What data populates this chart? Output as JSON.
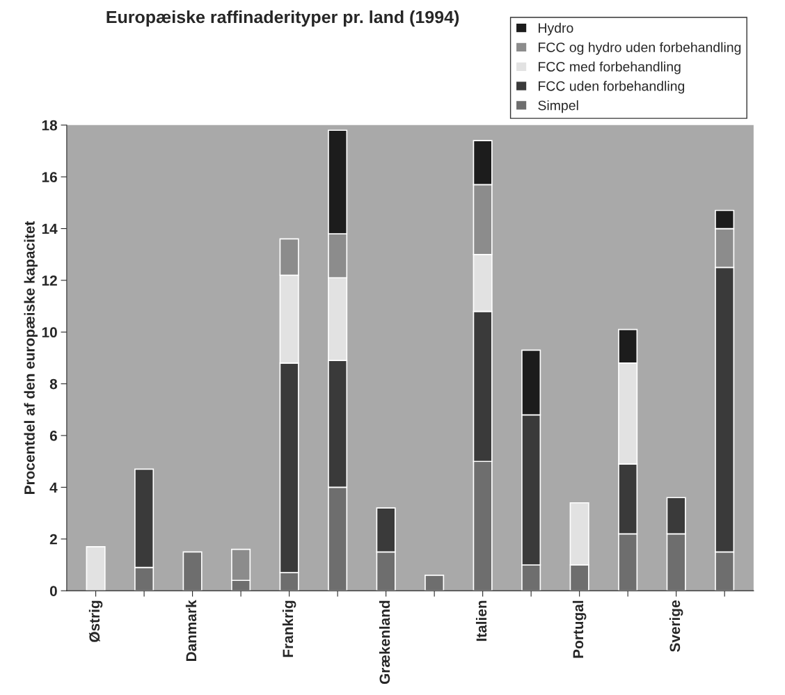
{
  "chart_data": {
    "type": "bar",
    "stacked": true,
    "title": "Europæiske raffinaderityper pr. land (1994)",
    "ylabel": "Procentdel af den europæiske kapacitet",
    "categories": [
      "Østrig",
      null,
      "Danmark",
      null,
      "Frankrig",
      null,
      "Grækenland",
      null,
      "Italien",
      null,
      "Portugal",
      null,
      "Sverige",
      null
    ],
    "series": [
      {
        "name": "Simpel",
        "color": "#6e6e6e",
        "values": [
          null,
          0.9,
          1.5,
          0.4,
          0.7,
          4.0,
          1.5,
          0.6,
          5.0,
          1.0,
          1.0,
          2.2,
          2.2,
          1.5
        ]
      },
      {
        "name": "FCC uden forbehandling",
        "color": "#3a3a3a",
        "values": [
          null,
          3.8,
          null,
          null,
          8.1,
          4.9,
          1.7,
          null,
          5.8,
          5.8,
          null,
          2.7,
          1.4,
          11.0
        ]
      },
      {
        "name": "FCC med forbehandling",
        "color": "#e2e2e2",
        "values": [
          1.7,
          null,
          null,
          null,
          3.4,
          3.2,
          null,
          null,
          2.2,
          null,
          2.4,
          3.9,
          null,
          null
        ]
      },
      {
        "name": "FCC og hydro uden forbehandling",
        "color": "#8c8c8c",
        "values": [
          null,
          null,
          null,
          1.2,
          1.4,
          1.7,
          null,
          null,
          2.7,
          null,
          null,
          null,
          null,
          1.5
        ]
      },
      {
        "name": "Hydro",
        "color": "#1c1c1c",
        "values": [
          null,
          null,
          null,
          null,
          null,
          4.0,
          null,
          null,
          1.7,
          2.5,
          null,
          1.3,
          null,
          0.7
        ]
      }
    ],
    "ylim": [
      0,
      18
    ],
    "yticks": [
      0,
      2,
      4,
      6,
      8,
      10,
      12,
      14,
      16,
      18
    ],
    "legend": "top right",
    "grid": false
  }
}
